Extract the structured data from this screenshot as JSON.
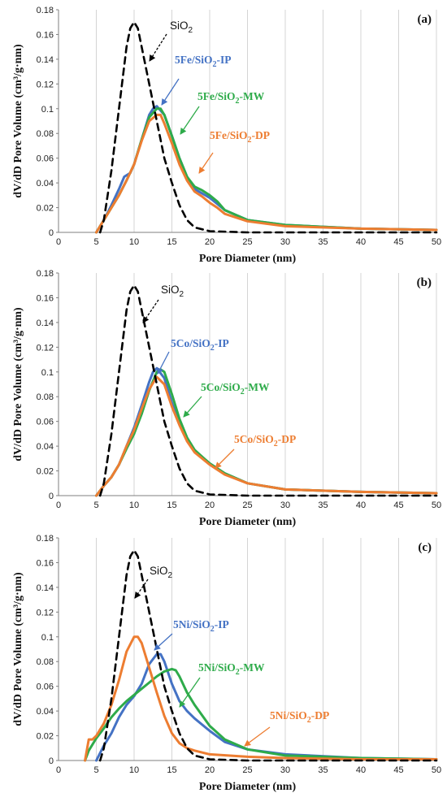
{
  "chart_data": [
    {
      "type": "line",
      "panel": "(a)",
      "xlabel": "Pore Diameter (nm)",
      "ylabel": "dV/dD Pore Volume (cm³/g·nm)",
      "xlim": [
        0,
        50
      ],
      "ylim": [
        0,
        0.18
      ],
      "xticks": [
        0,
        5,
        10,
        15,
        20,
        25,
        30,
        35,
        40,
        45,
        50
      ],
      "yticks": [
        0,
        0.02,
        0.04,
        0.06,
        0.08,
        0.1,
        0.12,
        0.14,
        0.16,
        0.18
      ],
      "grid": "vertical",
      "series": [
        {
          "name": "SiO2",
          "label_main": "SiO",
          "label_sub": "2",
          "label_tail": "",
          "color": "#000000",
          "dash": "dashed",
          "x": [
            5.5,
            6,
            7,
            8,
            9,
            9.5,
            10,
            10.5,
            11,
            12,
            13,
            14,
            15,
            16,
            17,
            18,
            20,
            25,
            30,
            40,
            50
          ],
          "y": [
            0,
            0.01,
            0.05,
            0.1,
            0.15,
            0.165,
            0.17,
            0.165,
            0.15,
            0.12,
            0.09,
            0.06,
            0.04,
            0.022,
            0.01,
            0.004,
            0.001,
            0,
            0,
            0,
            0
          ]
        },
        {
          "name": "5Fe/SiO2-IP",
          "label_main": "5Fe/SiO",
          "label_sub": "2",
          "label_tail": "-IP",
          "color": "#4472c4",
          "dash": "solid",
          "x": [
            5,
            6,
            7,
            8,
            8.7,
            9.5,
            10,
            11,
            12,
            12.5,
            13,
            14,
            15,
            16,
            17,
            18,
            20,
            22,
            25,
            30,
            40,
            50
          ],
          "y": [
            0,
            0.01,
            0.022,
            0.035,
            0.045,
            0.048,
            0.055,
            0.075,
            0.095,
            0.1,
            0.102,
            0.095,
            0.078,
            0.06,
            0.045,
            0.035,
            0.028,
            0.018,
            0.01,
            0.006,
            0.003,
            0.002
          ]
        },
        {
          "name": "5Fe/SiO2-MW",
          "label_main": "5Fe/SiO",
          "label_sub": "2",
          "label_tail": "-MW",
          "color": "#2eab4a",
          "dash": "solid",
          "x": [
            5,
            6,
            7,
            8,
            9,
            10,
            11,
            12,
            13,
            13.5,
            14,
            15,
            16,
            17,
            18,
            19,
            20,
            21,
            22,
            25,
            30,
            40,
            50
          ],
          "y": [
            0,
            0.01,
            0.02,
            0.03,
            0.042,
            0.055,
            0.075,
            0.093,
            0.1,
            0.1,
            0.095,
            0.078,
            0.06,
            0.045,
            0.037,
            0.034,
            0.03,
            0.025,
            0.018,
            0.01,
            0.006,
            0.003,
            0.002
          ]
        },
        {
          "name": "5Fe/SiO2-DP",
          "label_main": "5Fe/SiO",
          "label_sub": "2",
          "label_tail": "-DP",
          "color": "#ed7d31",
          "dash": "solid",
          "x": [
            5,
            6,
            7,
            8,
            9,
            10,
            11,
            12,
            13,
            13.5,
            14,
            15,
            16,
            17,
            18,
            19,
            20,
            21,
            22,
            25,
            30,
            40,
            50
          ],
          "y": [
            0,
            0.01,
            0.02,
            0.03,
            0.042,
            0.055,
            0.074,
            0.09,
            0.095,
            0.095,
            0.088,
            0.072,
            0.055,
            0.042,
            0.033,
            0.029,
            0.024,
            0.02,
            0.015,
            0.009,
            0.005,
            0.003,
            0.002
          ]
        }
      ]
    },
    {
      "type": "line",
      "panel": "(b)",
      "xlabel": "Pore Diameter (nm)",
      "ylabel": "dV/dD Pore Volume (cm³/g·nm)",
      "xlim": [
        0,
        50
      ],
      "ylim": [
        0,
        0.18
      ],
      "xticks": [
        0,
        5,
        10,
        15,
        20,
        25,
        30,
        35,
        40,
        45,
        50
      ],
      "yticks": [
        0,
        0.02,
        0.04,
        0.06,
        0.08,
        0.1,
        0.12,
        0.14,
        0.16,
        0.18
      ],
      "grid": "vertical",
      "series": [
        {
          "name": "SiO2",
          "label_main": "SiO",
          "label_sub": "2",
          "label_tail": "",
          "color": "#000000",
          "dash": "dashed",
          "x": [
            5.5,
            6,
            7,
            8,
            9,
            9.5,
            10,
            10.5,
            11,
            12,
            13,
            14,
            15,
            16,
            17,
            18,
            20,
            25,
            30,
            40,
            50
          ],
          "y": [
            0,
            0.01,
            0.05,
            0.1,
            0.15,
            0.165,
            0.17,
            0.165,
            0.15,
            0.12,
            0.09,
            0.06,
            0.04,
            0.022,
            0.01,
            0.004,
            0.001,
            0,
            0,
            0,
            0
          ]
        },
        {
          "name": "5Co/SiO2-IP",
          "label_main": "5Co/SiO",
          "label_sub": "2",
          "label_tail": "-IP",
          "color": "#4472c4",
          "dash": "solid",
          "x": [
            5,
            6,
            7,
            8,
            9,
            10,
            11,
            12,
            12.5,
            13,
            14,
            15,
            16,
            17,
            18,
            20,
            22,
            25,
            30,
            40,
            50
          ],
          "y": [
            0,
            0.008,
            0.015,
            0.025,
            0.04,
            0.055,
            0.073,
            0.092,
            0.1,
            0.103,
            0.095,
            0.075,
            0.058,
            0.045,
            0.036,
            0.026,
            0.018,
            0.01,
            0.005,
            0.003,
            0.002
          ]
        },
        {
          "name": "5Co/SiO2-MW",
          "label_main": "5Co/SiO",
          "label_sub": "2",
          "label_tail": "-MW",
          "color": "#2eab4a",
          "dash": "solid",
          "x": [
            5,
            6,
            7,
            8,
            9,
            10,
            11,
            12,
            13,
            13.5,
            14,
            15,
            16,
            17,
            18,
            20,
            22,
            25,
            30,
            40,
            50
          ],
          "y": [
            0,
            0.008,
            0.015,
            0.025,
            0.038,
            0.05,
            0.066,
            0.085,
            0.1,
            0.102,
            0.1,
            0.082,
            0.062,
            0.047,
            0.037,
            0.026,
            0.018,
            0.01,
            0.005,
            0.003,
            0.002
          ]
        },
        {
          "name": "5Co/SiO2-DP",
          "label_main": "5Co/SiO",
          "label_sub": "2",
          "label_tail": "-DP",
          "color": "#ed7d31",
          "dash": "solid",
          "x": [
            5,
            6,
            7,
            8,
            9,
            10,
            11,
            12,
            13,
            14,
            15,
            16,
            17,
            18,
            20,
            22,
            25,
            30,
            40,
            50
          ],
          "y": [
            0,
            0.008,
            0.015,
            0.025,
            0.04,
            0.053,
            0.07,
            0.086,
            0.096,
            0.09,
            0.072,
            0.057,
            0.044,
            0.035,
            0.025,
            0.017,
            0.01,
            0.005,
            0.003,
            0.002
          ]
        }
      ]
    },
    {
      "type": "line",
      "panel": "(c)",
      "xlabel": "Pore Diameter (nm)",
      "ylabel": "dV/dD Pore Volume (cm³/g·nm)",
      "xlim": [
        0,
        50
      ],
      "ylim": [
        0,
        0.18
      ],
      "xticks": [
        0,
        5,
        10,
        15,
        20,
        25,
        30,
        35,
        40,
        45,
        50
      ],
      "yticks": [
        0,
        0.02,
        0.04,
        0.06,
        0.08,
        0.1,
        0.12,
        0.14,
        0.16,
        0.18
      ],
      "grid": "vertical",
      "series": [
        {
          "name": "SiO2",
          "label_main": "SiO",
          "label_sub": "2",
          "label_tail": "",
          "color": "#000000",
          "dash": "dashed",
          "x": [
            5.5,
            6,
            7,
            8,
            9,
            9.5,
            10,
            10.5,
            11,
            12,
            13,
            14,
            15,
            16,
            17,
            18,
            20,
            25,
            30,
            40,
            50
          ],
          "y": [
            0,
            0.01,
            0.05,
            0.1,
            0.15,
            0.165,
            0.17,
            0.165,
            0.15,
            0.12,
            0.09,
            0.06,
            0.04,
            0.022,
            0.01,
            0.004,
            0.001,
            0,
            0,
            0,
            0
          ]
        },
        {
          "name": "5Ni/SiO2-IP",
          "label_main": "5Ni/SiO",
          "label_sub": "2",
          "label_tail": "-IP",
          "color": "#4472c4",
          "dash": "solid",
          "x": [
            5,
            6,
            7,
            8,
            9,
            10,
            11,
            12,
            13,
            13.5,
            14,
            15,
            16,
            17,
            18,
            20,
            22,
            25,
            30,
            40,
            50
          ],
          "y": [
            0,
            0.012,
            0.022,
            0.035,
            0.045,
            0.052,
            0.062,
            0.078,
            0.086,
            0.086,
            0.08,
            0.062,
            0.048,
            0.04,
            0.034,
            0.024,
            0.015,
            0.009,
            0.005,
            0.002,
            0.001
          ]
        },
        {
          "name": "5Ni/SiO2-MW",
          "label_main": "5Ni/SiO",
          "label_sub": "2",
          "label_tail": "-MW",
          "color": "#2eab4a",
          "dash": "solid",
          "x": [
            3.5,
            4,
            5,
            6,
            7,
            8,
            9,
            10,
            11,
            12,
            13,
            14,
            15,
            15.5,
            16,
            17,
            18,
            20,
            22,
            25,
            30,
            40,
            50
          ],
          "y": [
            0,
            0.008,
            0.018,
            0.026,
            0.035,
            0.042,
            0.048,
            0.053,
            0.058,
            0.063,
            0.068,
            0.072,
            0.074,
            0.073,
            0.068,
            0.055,
            0.045,
            0.028,
            0.017,
            0.009,
            0.004,
            0.002,
            0.001
          ]
        },
        {
          "name": "5Ni/SiO2-DP",
          "label_main": "5Ni/SiO",
          "label_sub": "2",
          "label_tail": "-DP",
          "color": "#ed7d31",
          "dash": "solid",
          "x": [
            3.5,
            4,
            4.5,
            5,
            6,
            7,
            8,
            9,
            10,
            10.5,
            11,
            12,
            13,
            14,
            15,
            16,
            17,
            18,
            20,
            25,
            30,
            40,
            50
          ],
          "y": [
            0,
            0.017,
            0.017,
            0.02,
            0.03,
            0.045,
            0.065,
            0.088,
            0.1,
            0.1,
            0.095,
            0.075,
            0.055,
            0.036,
            0.022,
            0.014,
            0.01,
            0.008,
            0.005,
            0.003,
            0.002,
            0.001,
            0.001
          ]
        }
      ]
    }
  ]
}
